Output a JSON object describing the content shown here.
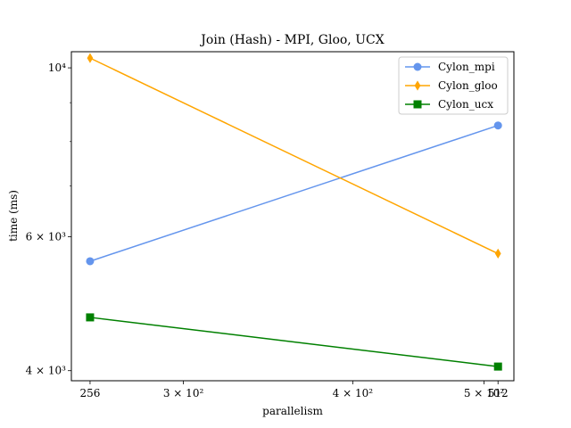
{
  "chart_data": {
    "type": "line",
    "title": "Join (Hash) - MPI, Gloo, UCX",
    "xlabel": "parallelism",
    "ylabel": "time (ms)",
    "x_scale": "log",
    "y_scale": "log",
    "x": [
      256,
      512
    ],
    "xlim": [
      248,
      526
    ],
    "ylim": [
      3880,
      10500
    ],
    "x_ticks": [
      {
        "value": 256,
        "label": "256"
      },
      {
        "value": 300,
        "label": "3 × 10²"
      },
      {
        "value": 400,
        "label": "4 × 10²"
      },
      {
        "value": 500,
        "label": "5 × 10²"
      },
      {
        "value": 512,
        "label": "512"
      }
    ],
    "y_ticks": [
      {
        "value": 4000,
        "label": "4 × 10³"
      },
      {
        "value": 6000,
        "label": "6 × 10³"
      },
      {
        "value": 10000,
        "label": "10⁴"
      }
    ],
    "y_minor_ticks": [
      7000,
      8000,
      9000
    ],
    "grid": false,
    "legend_position": "top-right",
    "series": [
      {
        "name": "Cylon_mpi",
        "values": [
          5570,
          8400
        ],
        "color": "#6495ED",
        "marker": "circle"
      },
      {
        "name": "Cylon_gloo",
        "values": [
          10300,
          5700
        ],
        "color": "#FFA500",
        "marker": "diamond"
      },
      {
        "name": "Cylon_ucx",
        "values": [
          4700,
          4050
        ],
        "color": "#008000",
        "marker": "square"
      }
    ]
  }
}
